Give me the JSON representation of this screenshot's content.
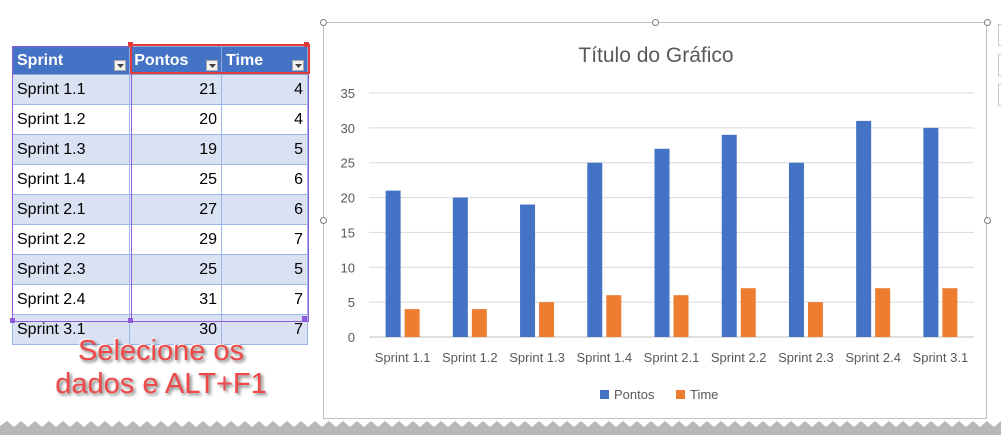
{
  "table": {
    "headers": [
      "Sprint",
      "Pontos",
      "Time"
    ],
    "rows": [
      {
        "sprint": "Sprint 1.1",
        "pontos": "21",
        "time": "4"
      },
      {
        "sprint": "Sprint 1.2",
        "pontos": "20",
        "time": "4"
      },
      {
        "sprint": "Sprint 1.3",
        "pontos": "19",
        "time": "5"
      },
      {
        "sprint": "Sprint 1.4",
        "pontos": "25",
        "time": "6"
      },
      {
        "sprint": "Sprint 2.1",
        "pontos": "27",
        "time": "6"
      },
      {
        "sprint": "Sprint 2.2",
        "pontos": "29",
        "time": "7"
      },
      {
        "sprint": "Sprint 2.3",
        "pontos": "25",
        "time": "5"
      },
      {
        "sprint": "Sprint 2.4",
        "pontos": "31",
        "time": "7"
      },
      {
        "sprint": "Sprint 3.1",
        "pontos": "30",
        "time": "7"
      }
    ],
    "header_color": "#4472c4",
    "band_color": "#d9e1f2"
  },
  "callout": {
    "line1": "Selecione os",
    "line2": "dados e ALT+F1",
    "color": "#f04848"
  },
  "chart_data": {
    "type": "bar",
    "title": "Título do Gráfico",
    "categories": [
      "Sprint 1.1",
      "Sprint 1.2",
      "Sprint 1.3",
      "Sprint 1.4",
      "Sprint 2.1",
      "Sprint 2.2",
      "Sprint 2.3",
      "Sprint 2.4",
      "Sprint 3.1"
    ],
    "series": [
      {
        "name": "Pontos",
        "values": [
          21,
          20,
          19,
          25,
          27,
          29,
          25,
          31,
          30
        ],
        "color": "#4472c4"
      },
      {
        "name": "Time",
        "values": [
          4,
          4,
          5,
          6,
          6,
          7,
          5,
          7,
          7
        ],
        "color": "#ed7d31"
      }
    ],
    "ylim": [
      0,
      35
    ],
    "yticks": [
      0,
      5,
      10,
      15,
      20,
      25,
      30,
      35
    ],
    "grid": true,
    "legend": "bottom"
  }
}
